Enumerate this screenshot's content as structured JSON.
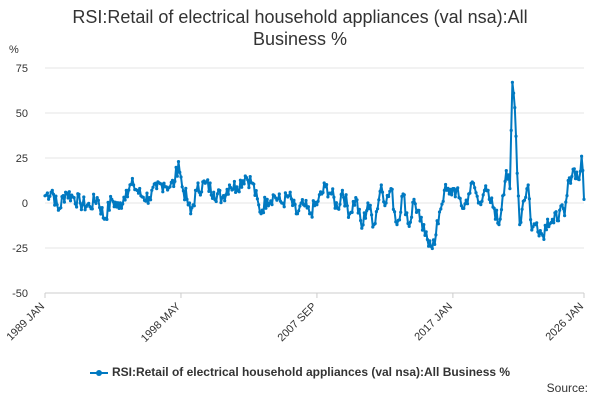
{
  "chart_data": {
    "type": "line",
    "title_line1": "RSI:Retail of electrical household appliances (val nsa):All",
    "title_line2": "Business %",
    "ylabel": "%",
    "ylim": [
      -50,
      75
    ],
    "yticks": [
      75,
      50,
      25,
      0,
      -25,
      -50
    ],
    "xlim": [
      "1989-01",
      "2026-01"
    ],
    "xticks": [
      "1989 JAN",
      "1998 MAY",
      "2007 SEP",
      "2017 JAN",
      "2026 JAN"
    ],
    "grid": true,
    "legend_position": "bottom",
    "series": [
      {
        "name": "RSI:Retail of electrical household appliances (val nsa):All Business %",
        "color": "#0079c1",
        "keypoints": [
          [
            "1989-01",
            4
          ],
          [
            "1989-07",
            7
          ],
          [
            "1989-12",
            -4
          ],
          [
            "1990-06",
            6
          ],
          [
            "1991-01",
            3
          ],
          [
            "1991-06",
            0
          ],
          [
            "1992-02",
            -2
          ],
          [
            "1992-08",
            3
          ],
          [
            "1993-02",
            -9
          ],
          [
            "1993-08",
            2
          ],
          [
            "1994-02",
            -3
          ],
          [
            "1994-08",
            7
          ],
          [
            "1995-02",
            10
          ],
          [
            "1995-08",
            4
          ],
          [
            "1996-03",
            3
          ],
          [
            "1996-09",
            8
          ],
          [
            "1997-03",
            11
          ],
          [
            "1997-08",
            9
          ],
          [
            "1997-12",
            12
          ],
          [
            "1998-03",
            23
          ],
          [
            "1998-06",
            9
          ],
          [
            "1998-10",
            2
          ],
          [
            "1999-01",
            -6
          ],
          [
            "1999-06",
            7
          ],
          [
            "2000-01",
            11
          ],
          [
            "2000-08",
            6
          ],
          [
            "2001-03",
            3
          ],
          [
            "2001-09",
            10
          ],
          [
            "2002-03",
            9
          ],
          [
            "2002-10",
            15
          ],
          [
            "2003-04",
            11
          ],
          [
            "2003-10",
            -5
          ],
          [
            "2004-04",
            2
          ],
          [
            "2004-10",
            4
          ],
          [
            "2005-04",
            0
          ],
          [
            "2005-10",
            4
          ],
          [
            "2006-04",
            -6
          ],
          [
            "2006-10",
            -1
          ],
          [
            "2007-03",
            -6
          ],
          [
            "2007-10",
            1
          ],
          [
            "2008-04",
            9
          ],
          [
            "2008-09",
            5
          ],
          [
            "2009-02",
            -3
          ],
          [
            "2009-06",
            7
          ],
          [
            "2009-12",
            -6
          ],
          [
            "2010-05",
            3
          ],
          [
            "2010-10",
            -14
          ],
          [
            "2011-03",
            0
          ],
          [
            "2011-08",
            -12
          ],
          [
            "2012-02",
            10
          ],
          [
            "2012-06",
            0
          ],
          [
            "2012-10",
            8
          ],
          [
            "2013-03",
            -12
          ],
          [
            "2013-08",
            5
          ],
          [
            "2014-01",
            -13
          ],
          [
            "2014-05",
            2
          ],
          [
            "2014-10",
            -10
          ],
          [
            "2015-02",
            -18
          ],
          [
            "2015-06",
            -21
          ],
          [
            "2015-10",
            -23
          ],
          [
            "2016-02",
            -5
          ],
          [
            "2016-06",
            7
          ],
          [
            "2016-10",
            5
          ],
          [
            "2017-02",
            8
          ],
          [
            "2017-06",
            3
          ],
          [
            "2017-10",
            -3
          ],
          [
            "2018-02",
            5
          ],
          [
            "2018-06",
            11
          ],
          [
            "2018-10",
            0
          ],
          [
            "2019-03",
            7
          ],
          [
            "2019-07",
            2
          ],
          [
            "2019-11",
            -3
          ],
          [
            "2020-03",
            -12
          ],
          [
            "2020-06",
            4
          ],
          [
            "2020-09",
            18
          ],
          [
            "2020-12",
            8
          ],
          [
            "2021-02",
            67
          ],
          [
            "2021-04",
            53
          ],
          [
            "2021-08",
            -12
          ],
          [
            "2021-11",
            1
          ],
          [
            "2022-03",
            10
          ],
          [
            "2022-06",
            -15
          ],
          [
            "2022-10",
            -11
          ],
          [
            "2023-03",
            -18
          ],
          [
            "2023-07",
            -9
          ],
          [
            "2023-12",
            -11
          ],
          [
            "2024-05",
            -4
          ],
          [
            "2024-09",
            -7
          ],
          [
            "2025-01",
            14
          ],
          [
            "2025-05",
            19
          ],
          [
            "2025-09",
            13
          ],
          [
            "2025-11",
            26
          ],
          [
            "2026-01",
            2
          ]
        ]
      }
    ]
  },
  "legend": {
    "label": "RSI:Retail of electrical household appliances (val nsa):All Business %"
  },
  "footer": {
    "source": "Source:"
  }
}
